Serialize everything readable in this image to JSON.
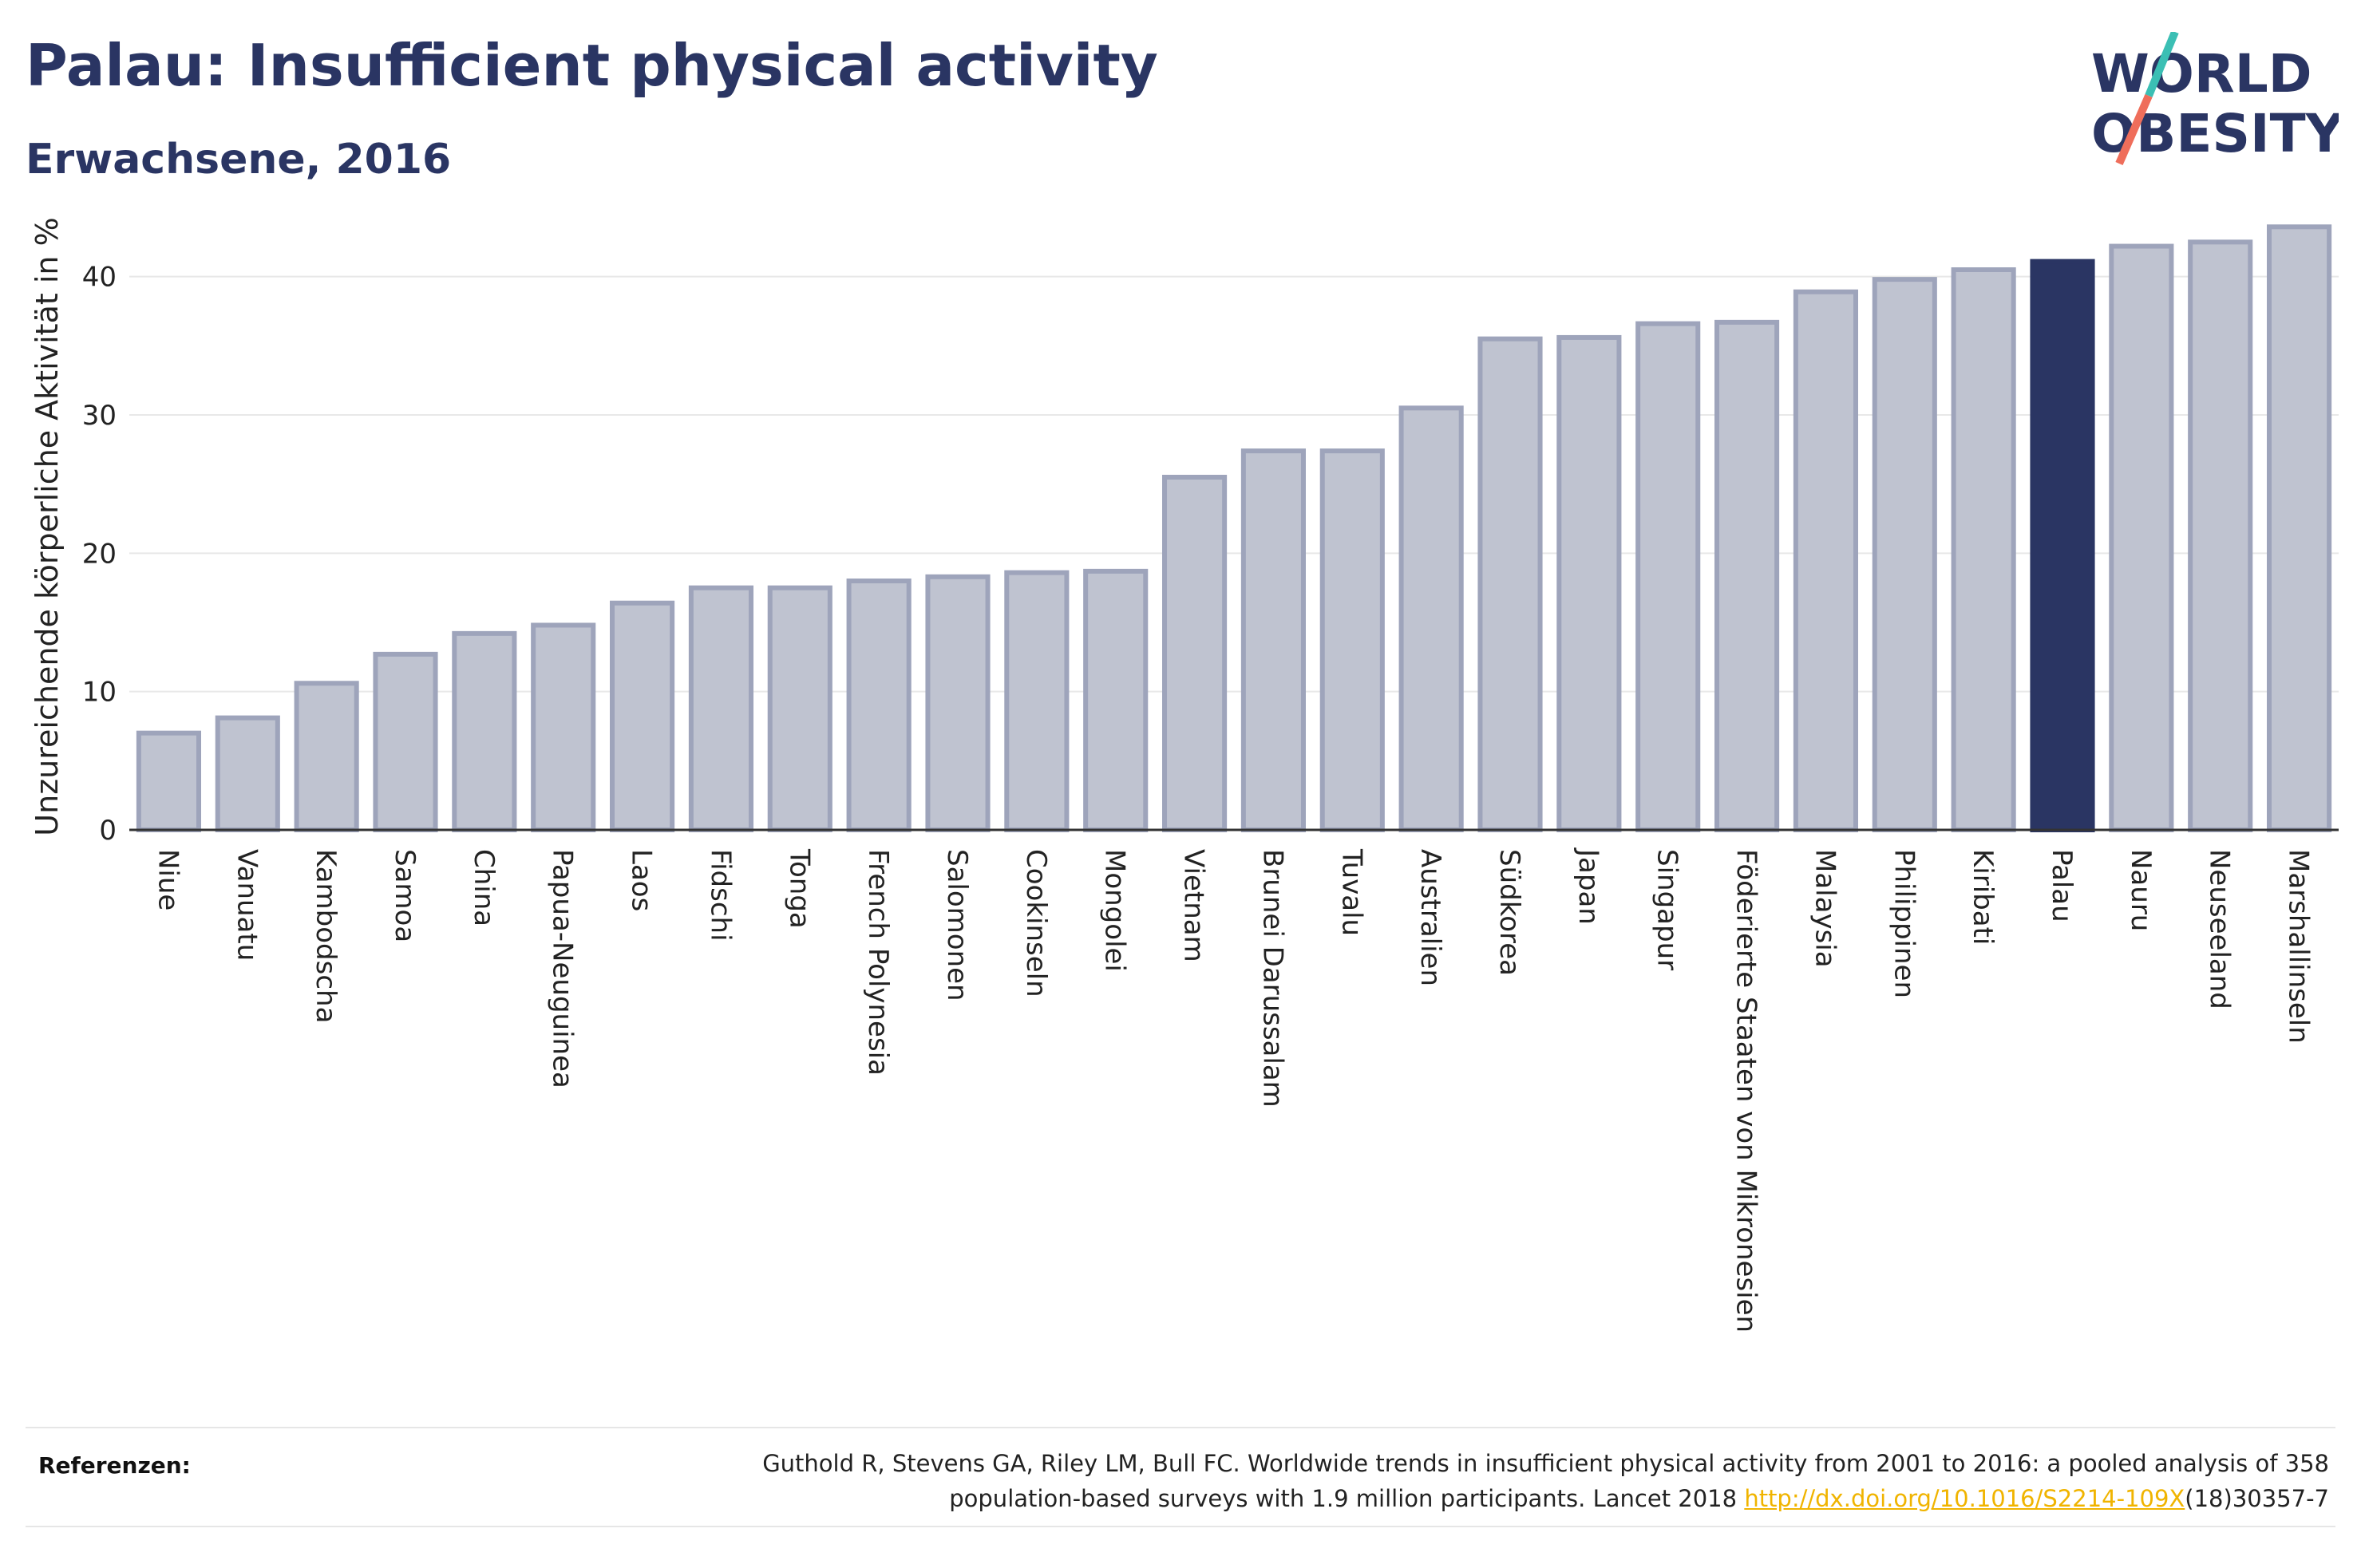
{
  "header": {
    "title": "Palau: Insufficient physical activity",
    "subtitle": "Erwachsene, 2016"
  },
  "logo": {
    "line1": "WORLD",
    "line2": "OBESITY"
  },
  "colors": {
    "bar": "#bfc3d0",
    "bar_stroke": "#9ea4bb",
    "highlight": "#2a3563",
    "grid": "#e8e8e8",
    "accent_teal": "#3bbfb4",
    "accent_coral": "#ef6e5b"
  },
  "chart_data": {
    "type": "bar",
    "ylabel": "Unzureichende körperliche Aktivität in %",
    "ylim": [
      0,
      45
    ],
    "yticks": [
      0,
      10,
      20,
      30,
      40
    ],
    "grid": true,
    "highlight": "Palau",
    "categories": [
      "Niue",
      "Vanuatu",
      "Kambodscha",
      "Samoa",
      "China",
      "Papua-Neuguinea",
      "Laos",
      "Fidschi",
      "Tonga",
      "French Polynesia",
      "Salomonen",
      "Cookinseln",
      "Mongolei",
      "Vietnam",
      "Brunei Darussalam",
      "Tuvalu",
      "Australien",
      "Südkorea",
      "Japan",
      "Singapur",
      "Föderierte Staaten von Mikronesien",
      "Malaysia",
      "Philippinen",
      "Kiribati",
      "Palau",
      "Nauru",
      "Neuseeland",
      "Marshallinseln"
    ],
    "values": [
      7.0,
      8.1,
      10.6,
      12.7,
      14.2,
      14.8,
      16.4,
      17.5,
      17.5,
      18.0,
      18.3,
      18.6,
      18.7,
      25.5,
      27.4,
      27.4,
      30.5,
      35.5,
      35.6,
      36.6,
      36.7,
      38.9,
      39.8,
      40.5,
      41.1,
      42.2,
      42.5,
      43.6
    ]
  },
  "references": {
    "label": "Referenzen:",
    "line1": "Guthold R, Stevens GA, Riley LM, Bull FC. Worldwide trends in insufficient physical activity from 2001 to 2016: a pooled analysis of 358",
    "line2_prefix": "population-based surveys with 1.9 million participants. Lancet 2018 ",
    "link": "http://dx.doi.org/10.1016/S2214-109X",
    "line2_suffix": "(18)30357-7"
  }
}
